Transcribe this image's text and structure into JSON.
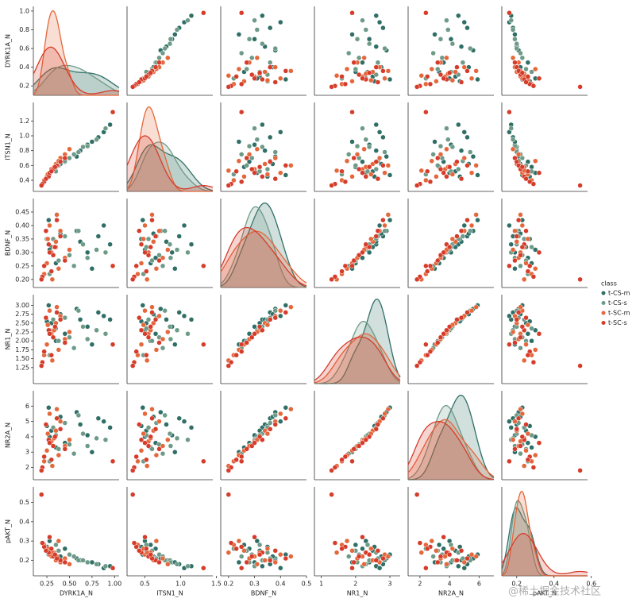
{
  "chart_data": {
    "type": "pairplot",
    "variables": [
      "DYRK1A_N",
      "ITSN1_N",
      "BDNF_N",
      "NR1_N",
      "NR2A_N",
      "pAKT_N"
    ],
    "lims": [
      [
        0.1,
        1.05
      ],
      [
        0.25,
        1.45
      ],
      [
        0.17,
        0.5
      ],
      [
        0.8,
        3.3
      ],
      [
        1.2,
        7.0
      ],
      [
        0.12,
        0.58
      ]
    ],
    "xticks": [
      [
        0.25,
        {
          "value": 0.5,
          "label": "0.50"
        },
        0.75,
        {
          "value": 1.0,
          "label": "1.00"
        }
      ],
      [
        0.5,
        {
          "value": 1.0,
          "label": "1.0"
        },
        1.5
      ],
      [
        0.2,
        0.3,
        0.4,
        0.5
      ],
      [
        1,
        2,
        3
      ],
      [
        2,
        4,
        6
      ],
      [
        0.2,
        0.4,
        0.6
      ]
    ],
    "yticks": [
      [
        0.2,
        0.4,
        0.6,
        0.8,
        {
          "value": 1.0,
          "label": "1.0"
        }
      ],
      [
        0.4,
        0.6,
        0.8,
        {
          "value": 1.0,
          "label": "1.0"
        },
        1.2
      ],
      [
        {
          "value": 0.2,
          "label": "0.20"
        },
        0.25,
        {
          "value": 0.3,
          "label": "0.30"
        },
        0.35,
        {
          "value": 0.4,
          "label": "0.40"
        },
        0.45
      ],
      [
        1.25,
        {
          "value": 1.5,
          "label": "1.50"
        },
        1.75,
        {
          "value": 2.0,
          "label": "2.00"
        },
        2.25,
        {
          "value": 2.5,
          "label": "2.50"
        },
        2.75,
        {
          "value": 3.0,
          "label": "3.00"
        }
      ],
      [
        2,
        3,
        4,
        5,
        6
      ],
      [
        0.2,
        0.3,
        0.4,
        0.5
      ]
    ],
    "legend_title": "class",
    "series": [
      {
        "name": "t-CS-m",
        "color": "#2f6f66",
        "values": [
          [
            0.95,
            1.15,
            0.33,
            2.6,
            4.6,
            0.17
          ],
          [
            0.82,
            0.98,
            0.36,
            2.8,
            5.2,
            0.18
          ],
          [
            0.7,
            0.88,
            0.3,
            2.4,
            4.1,
            0.19
          ],
          [
            0.58,
            0.72,
            0.38,
            2.9,
            5.6,
            0.21
          ],
          [
            0.45,
            0.65,
            0.28,
            2.2,
            3.6,
            0.26
          ],
          [
            0.3,
            0.52,
            0.32,
            2.5,
            4.4,
            0.25
          ],
          [
            0.27,
            0.47,
            0.42,
            3.0,
            5.9,
            0.23
          ],
          [
            0.35,
            0.58,
            0.26,
            2.0,
            3.3,
            0.28
          ],
          [
            0.62,
            0.8,
            0.34,
            2.6,
            4.8,
            0.2
          ],
          [
            0.88,
            1.05,
            0.4,
            2.7,
            5.0,
            0.16
          ],
          [
            0.28,
            0.5,
            0.31,
            2.3,
            4.0,
            0.3
          ],
          [
            0.4,
            0.62,
            0.37,
            2.75,
            5.3,
            0.22
          ],
          [
            0.75,
            0.92,
            0.24,
            1.9,
            3.0,
            0.19
          ],
          [
            0.25,
            0.45,
            0.35,
            2.55,
            4.7,
            0.27
          ]
        ]
      },
      {
        "name": "t-CS-s",
        "color": "#6e9a88",
        "values": [
          [
            0.5,
            0.7,
            0.29,
            2.1,
            3.5,
            0.23
          ],
          [
            0.65,
            0.85,
            0.33,
            2.4,
            4.2,
            0.2
          ],
          [
            0.38,
            0.6,
            0.27,
            2.0,
            3.2,
            0.25
          ],
          [
            0.8,
            0.95,
            0.31,
            2.3,
            3.9,
            0.18
          ],
          [
            0.32,
            0.55,
            0.35,
            2.6,
            4.6,
            0.24
          ],
          [
            0.55,
            0.75,
            0.25,
            1.8,
            2.9,
            0.22
          ],
          [
            0.9,
            1.1,
            0.3,
            2.2,
            3.8,
            0.17
          ],
          [
            0.28,
            0.48,
            0.22,
            1.6,
            2.4,
            0.26
          ],
          [
            0.45,
            0.66,
            0.36,
            2.65,
            4.9,
            0.21
          ],
          [
            0.7,
            0.86,
            0.28,
            2.05,
            3.4,
            0.19
          ],
          [
            0.35,
            0.52,
            0.32,
            2.35,
            4.1,
            0.28
          ],
          [
            0.6,
            0.78,
            0.38,
            2.85,
            5.4,
            0.2
          ]
        ]
      },
      {
        "name": "t-SC-m",
        "color": "#e5673c",
        "values": [
          [
            0.3,
            0.55,
            0.3,
            2.2,
            3.7,
            0.22
          ],
          [
            0.35,
            0.62,
            0.34,
            2.5,
            4.4,
            0.2
          ],
          [
            0.25,
            0.45,
            0.26,
            1.9,
            3.1,
            0.25
          ],
          [
            0.4,
            0.7,
            0.38,
            2.7,
            5.0,
            0.19
          ],
          [
            0.22,
            0.4,
            0.22,
            1.6,
            2.4,
            0.28
          ],
          [
            0.33,
            0.58,
            0.32,
            2.3,
            3.9,
            0.24
          ],
          [
            0.45,
            0.75,
            0.28,
            2.05,
            3.4,
            0.21
          ],
          [
            0.28,
            0.5,
            0.4,
            2.85,
            5.5,
            0.23
          ],
          [
            0.38,
            0.66,
            0.24,
            1.75,
            2.8,
            0.3
          ],
          [
            0.26,
            0.48,
            0.35,
            2.45,
            4.2,
            0.26
          ],
          [
            0.5,
            0.82,
            0.31,
            2.25,
            3.8,
            0.18
          ],
          [
            0.31,
            0.53,
            0.2,
            1.45,
            2.1,
            0.24
          ],
          [
            0.36,
            0.6,
            0.44,
            2.95,
            5.8,
            0.22
          ]
        ]
      },
      {
        "name": "t-SC-s",
        "color": "#d63c2a",
        "values": [
          [
            0.27,
            0.45,
            0.33,
            2.3,
            3.8,
            0.24
          ],
          [
            0.32,
            0.55,
            0.29,
            2.1,
            3.4,
            0.22
          ],
          [
            0.22,
            0.38,
            0.25,
            1.7,
            2.7,
            0.27
          ],
          [
            0.4,
            0.65,
            0.36,
            2.6,
            4.5,
            0.2
          ],
          [
            0.2,
            0.35,
            0.21,
            1.4,
            2.0,
            0.29
          ],
          [
            0.36,
            0.6,
            0.42,
            2.8,
            5.2,
            0.21
          ],
          [
            0.28,
            0.5,
            0.3,
            2.2,
            3.6,
            0.32
          ],
          [
            0.45,
            0.7,
            0.27,
            1.95,
            3.2,
            0.19
          ],
          [
            0.24,
            0.42,
            0.38,
            2.65,
            4.8,
            0.25
          ],
          [
            0.3,
            0.52,
            0.23,
            1.6,
            2.5,
            0.26
          ],
          [
            0.19,
            0.33,
            0.2,
            1.3,
            1.8,
            0.54
          ],
          [
            0.34,
            0.58,
            0.32,
            2.4,
            4.0,
            0.23
          ],
          [
            0.98,
            1.32,
            0.25,
            1.9,
            2.4,
            0.16
          ]
        ]
      }
    ],
    "watermark": "@稀土掘金技术社区"
  }
}
